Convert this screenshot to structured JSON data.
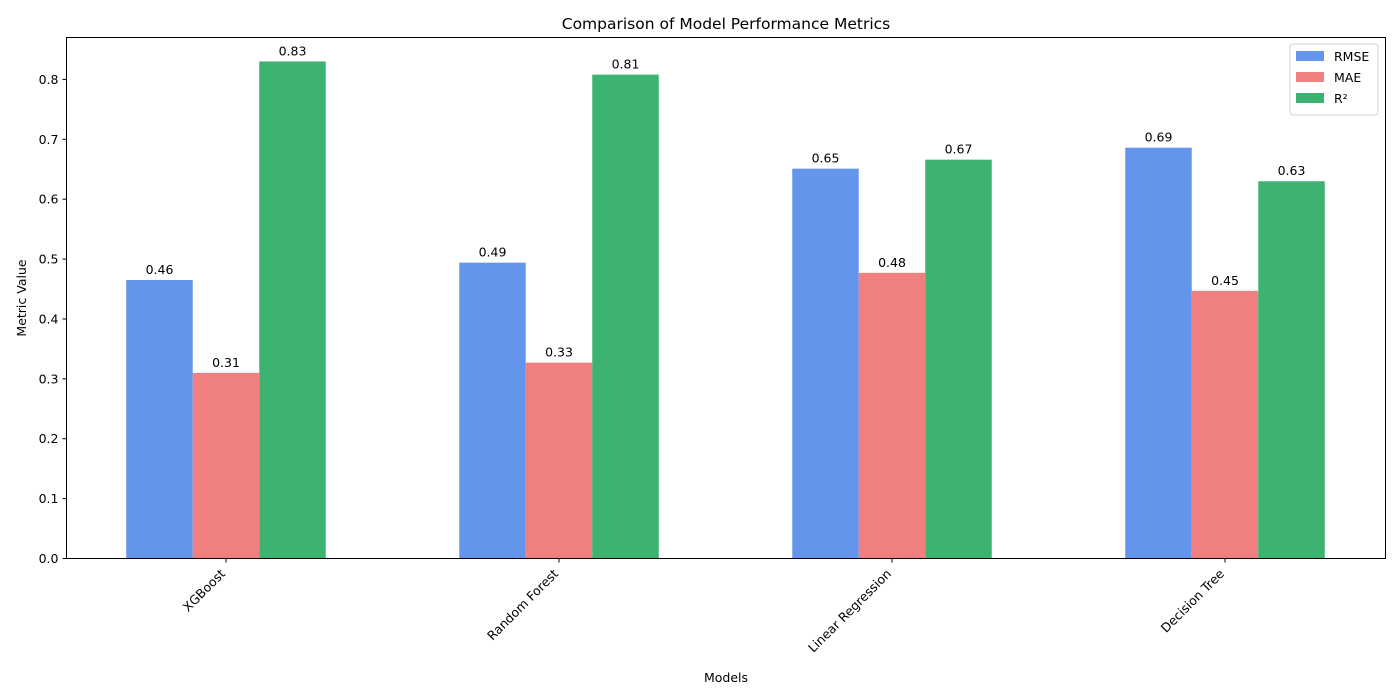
{
  "chart_data": {
    "type": "bar",
    "title": "Comparison of Model Performance Metrics",
    "xlabel": "Models",
    "ylabel": "Metric Value",
    "categories": [
      "XGBoost",
      "Random Forest",
      "Linear Regression",
      "Decision Tree"
    ],
    "series": [
      {
        "name": "RMSE",
        "color": "#6495ed",
        "values": [
          0.465,
          0.494,
          0.651,
          0.686
        ],
        "labels": [
          "0.46",
          "0.49",
          "0.65",
          "0.69"
        ]
      },
      {
        "name": "MAE",
        "color": "#f08080",
        "values": [
          0.31,
          0.327,
          0.477,
          0.447
        ],
        "labels": [
          "0.31",
          "0.33",
          "0.48",
          "0.45"
        ]
      },
      {
        "name": "R²",
        "color": "#3cb371",
        "values": [
          0.83,
          0.808,
          0.666,
          0.63
        ],
        "labels": [
          "0.83",
          "0.81",
          "0.67",
          "0.63"
        ]
      }
    ],
    "ylim": [
      0,
      0.87
    ],
    "yticks": [
      0.0,
      0.1,
      0.2,
      0.3,
      0.4,
      0.5,
      0.6,
      0.7,
      0.8
    ],
    "ytick_labels": [
      "0.0",
      "0.1",
      "0.2",
      "0.3",
      "0.4",
      "0.5",
      "0.6",
      "0.7",
      "0.8"
    ],
    "grid": false,
    "legend_position": "top-right"
  }
}
